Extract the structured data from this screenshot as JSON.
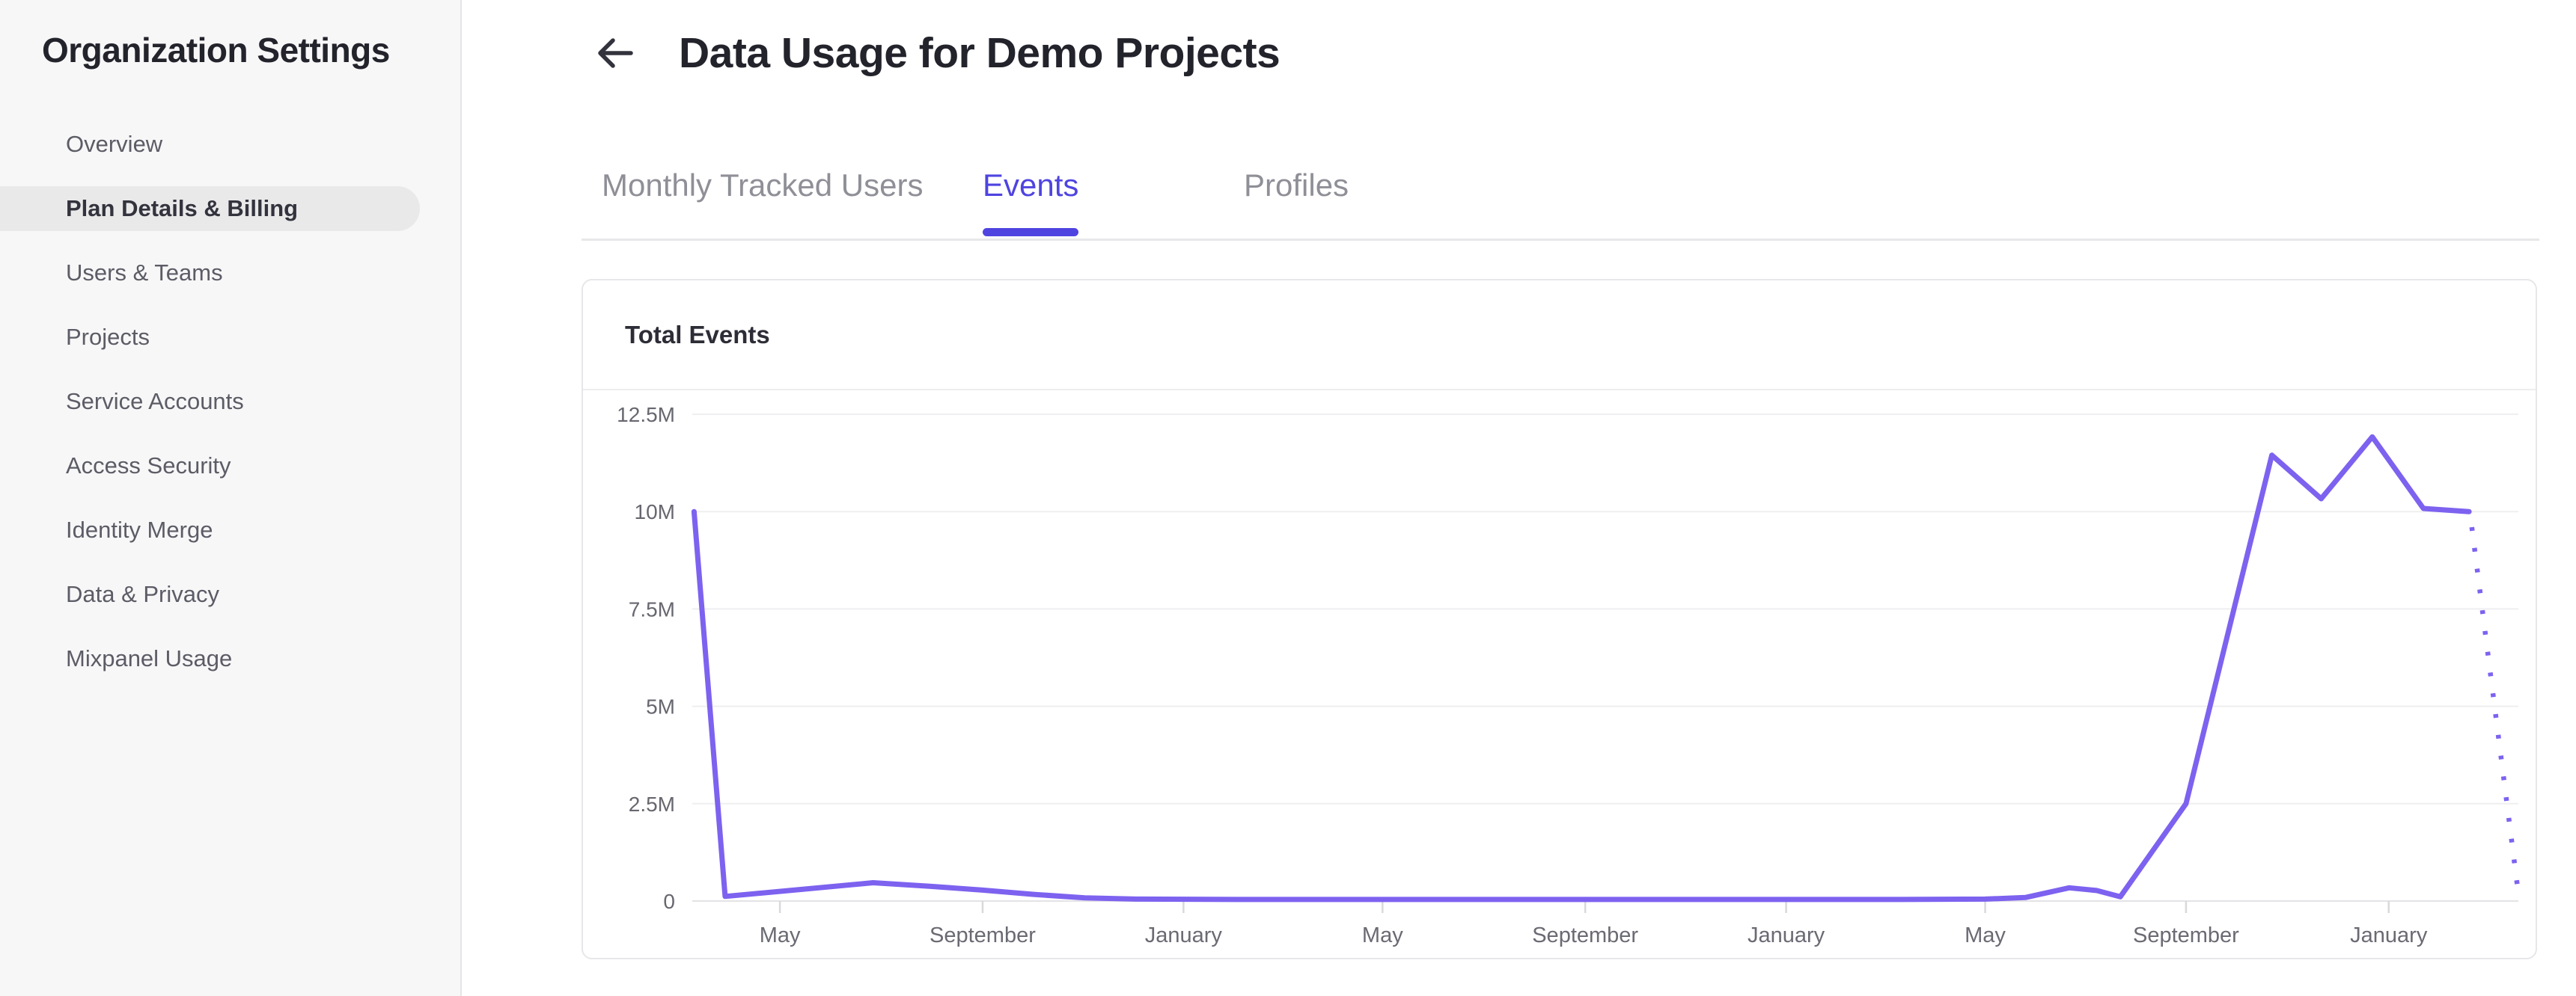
{
  "sidebar": {
    "title": "Organization Settings",
    "items": [
      {
        "label": "Overview",
        "active": false
      },
      {
        "label": "Plan Details & Billing",
        "active": true
      },
      {
        "label": "Users & Teams",
        "active": false
      },
      {
        "label": "Projects",
        "active": false
      },
      {
        "label": "Service Accounts",
        "active": false
      },
      {
        "label": "Access Security",
        "active": false
      },
      {
        "label": "Identity Merge",
        "active": false
      },
      {
        "label": "Data & Privacy",
        "active": false
      },
      {
        "label": "Mixpanel Usage",
        "active": false
      }
    ]
  },
  "header": {
    "title": "Data Usage for Demo Projects",
    "back_icon": "arrow-left-icon"
  },
  "tabs": [
    {
      "label": "Monthly Tracked Users",
      "active": false
    },
    {
      "label": "Events",
      "active": true
    },
    {
      "label": "Profiles",
      "active": false
    }
  ],
  "card": {
    "title": "Total Events"
  },
  "colors": {
    "accent": "#4f44e0",
    "line": "#7d62f0",
    "grid": "#efeff1",
    "zero_line": "#e3e3e6",
    "tick_mark": "#d9d9dc",
    "y_label": "#67676f",
    "x_label": "#6a6a73",
    "sidebar_bg": "#f7f7f8",
    "active_pill": "#e9e9ea"
  },
  "chart_data": {
    "type": "line",
    "title": "Total Events",
    "xlabel": "",
    "ylabel": "",
    "ylim": [
      0,
      12500000
    ],
    "grid": true,
    "legend_position": "none",
    "y_ticks": [
      {
        "label": "12.5M",
        "value": 12.5
      },
      {
        "label": "10M",
        "value": 10
      },
      {
        "label": "7.5M",
        "value": 7.5
      },
      {
        "label": "5M",
        "value": 5
      },
      {
        "label": "2.5M",
        "value": 2.5
      },
      {
        "label": "0",
        "value": 0
      }
    ],
    "x_ticks": [
      {
        "label": "May",
        "pos": 0.048
      },
      {
        "label": "September",
        "pos": 0.159
      },
      {
        "label": "January",
        "pos": 0.269
      },
      {
        "label": "May",
        "pos": 0.378
      },
      {
        "label": "September",
        "pos": 0.489
      },
      {
        "label": "January",
        "pos": 0.599
      },
      {
        "label": "May",
        "pos": 0.708
      },
      {
        "label": "September",
        "pos": 0.818
      },
      {
        "label": "January",
        "pos": 0.929
      }
    ],
    "value_unit": "millions of events",
    "series": [
      {
        "name": "Total Events",
        "color": "#7d62f0",
        "points": [
          [
            0.001,
            10.0
          ],
          [
            0.018,
            0.12
          ],
          [
            0.06,
            0.3
          ],
          [
            0.099,
            0.47
          ],
          [
            0.13,
            0.38
          ],
          [
            0.159,
            0.28
          ],
          [
            0.187,
            0.17
          ],
          [
            0.215,
            0.08
          ],
          [
            0.243,
            0.05
          ],
          [
            0.3,
            0.04
          ],
          [
            0.36,
            0.04
          ],
          [
            0.42,
            0.04
          ],
          [
            0.48,
            0.04
          ],
          [
            0.54,
            0.04
          ],
          [
            0.6,
            0.04
          ],
          [
            0.66,
            0.04
          ],
          [
            0.708,
            0.05
          ],
          [
            0.73,
            0.09
          ],
          [
            0.754,
            0.34
          ],
          [
            0.769,
            0.27
          ],
          [
            0.782,
            0.11
          ],
          [
            0.818,
            2.5
          ],
          [
            0.865,
            11.45
          ],
          [
            0.892,
            10.33
          ],
          [
            0.92,
            11.92
          ],
          [
            0.948,
            10.08
          ],
          [
            0.973,
            10.0
          ]
        ],
        "projected_points": [
          [
            0.9745,
            9.6
          ],
          [
            0.9995,
            0.37
          ]
        ],
        "projected_style": "dotted"
      }
    ]
  }
}
